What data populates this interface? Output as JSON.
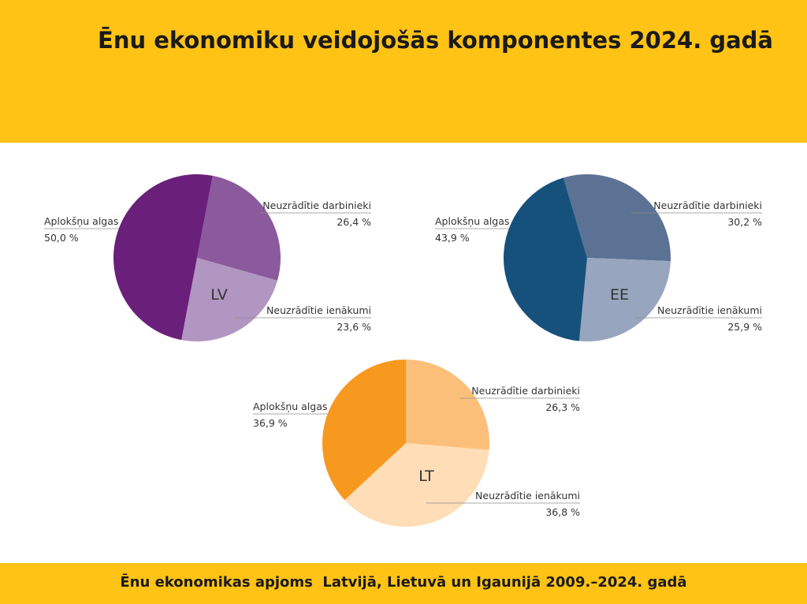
{
  "title": "Ēnu ekonomiku veidojošās komponentes 2024. gadā",
  "footer": "Ēnu ekonomikas apjoms  Latvijā, Lietuvā un Igaunijā 2009.–2024. gadā",
  "colors": {
    "band": "#FFC315"
  },
  "chart_data": [
    {
      "type": "pie",
      "title": "LV",
      "slices": [
        {
          "label": "Neuzrādītie darbinieki",
          "value": 26.4,
          "value_label": "26,4 %",
          "color": "#8B5A9C"
        },
        {
          "label": "Neuzrādītie ienākumi",
          "value": 23.6,
          "value_label": "23,6 %",
          "color": "#B196C1"
        },
        {
          "label": "Aplokšņu algas",
          "value": 50.0,
          "value_label": "50,0 %",
          "color": "#6A1F7B"
        }
      ]
    },
    {
      "type": "pie",
      "title": "EE",
      "slices": [
        {
          "label": "Neuzrādītie darbinieki",
          "value": 30.2,
          "value_label": "30,2 %",
          "color": "#5B7294"
        },
        {
          "label": "Neuzrādītie ienākumi",
          "value": 25.9,
          "value_label": "25,9 %",
          "color": "#97A5BE"
        },
        {
          "label": "Aplokšņu algas",
          "value": 43.9,
          "value_label": "43,9 %",
          "color": "#16517C"
        }
      ]
    },
    {
      "type": "pie",
      "title": "LT",
      "slices": [
        {
          "label": "Neuzrādītie darbinieki",
          "value": 26.3,
          "value_label": "26,3 %",
          "color": "#FCBF7A"
        },
        {
          "label": "Neuzrādītie ienākumi",
          "value": 36.8,
          "value_label": "36,8 %",
          "color": "#FFDDB6"
        },
        {
          "label": "Aplokšņu algas",
          "value": 36.9,
          "value_label": "36,9 %",
          "color": "#F7981F"
        }
      ]
    }
  ]
}
